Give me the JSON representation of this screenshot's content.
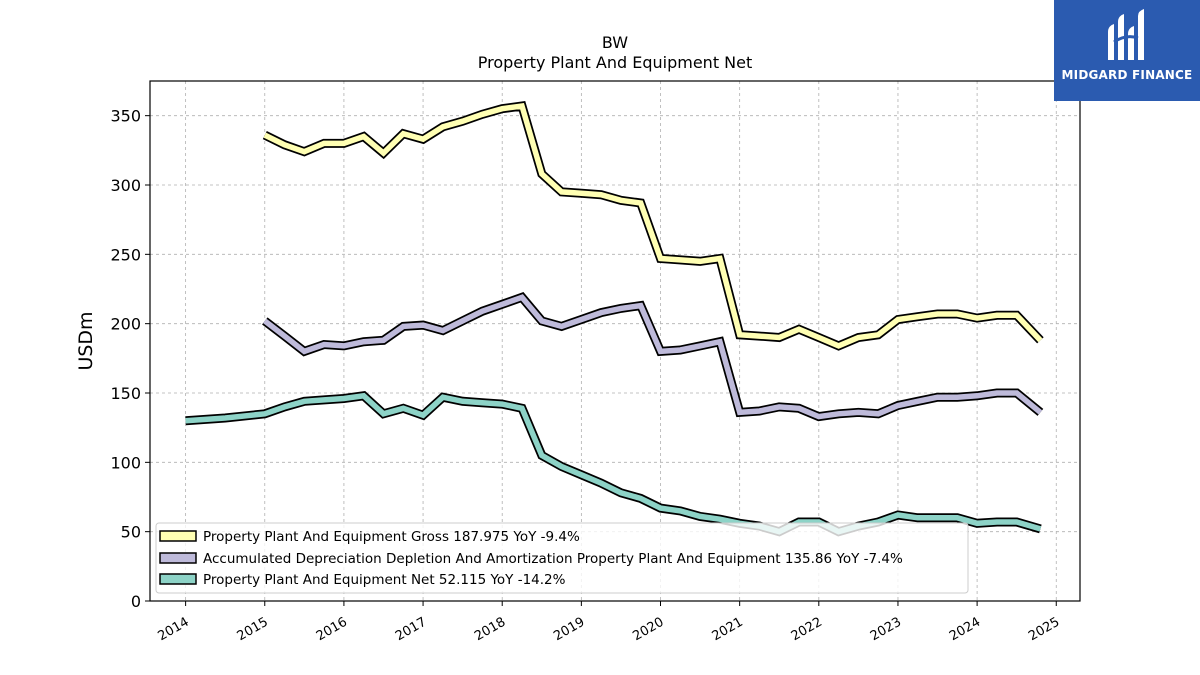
{
  "chart_data": {
    "type": "line",
    "title": "BW",
    "subtitle": "Property Plant And Equipment Net",
    "ylabel": "USDm",
    "xlabel": "",
    "ylim": [
      0,
      375
    ],
    "xlim": [
      2013.55,
      2025.3
    ],
    "yticks": [
      0,
      50,
      100,
      150,
      200,
      250,
      300,
      350
    ],
    "xticks": [
      2014,
      2015,
      2016,
      2017,
      2018,
      2019,
      2020,
      2021,
      2022,
      2023,
      2024,
      2025
    ],
    "grid": true,
    "legend_position": "lower-left",
    "series": [
      {
        "name": "Property Plant And Equipment Gross",
        "legend": "Property Plant And Equipment Gross  187.975 YoY -9.4%",
        "color": "#ffffb3",
        "points": [
          [
            2015.0,
            336
          ],
          [
            2015.25,
            329
          ],
          [
            2015.5,
            324
          ],
          [
            2015.75,
            330
          ],
          [
            2016.0,
            330
          ],
          [
            2016.25,
            335
          ],
          [
            2016.5,
            323
          ],
          [
            2016.75,
            337
          ],
          [
            2017.0,
            333
          ],
          [
            2017.25,
            342
          ],
          [
            2017.5,
            346
          ],
          [
            2017.75,
            351
          ],
          [
            2018.0,
            355
          ],
          [
            2018.25,
            357
          ],
          [
            2018.5,
            308
          ],
          [
            2018.75,
            295
          ],
          [
            2019.0,
            294
          ],
          [
            2019.25,
            293
          ],
          [
            2019.5,
            289
          ],
          [
            2019.75,
            287
          ],
          [
            2020.0,
            247
          ],
          [
            2020.25,
            246
          ],
          [
            2020.5,
            245
          ],
          [
            2020.75,
            247
          ],
          [
            2021.0,
            192
          ],
          [
            2021.25,
            191
          ],
          [
            2021.5,
            190
          ],
          [
            2021.75,
            196
          ],
          [
            2022.0,
            190
          ],
          [
            2022.25,
            184
          ],
          [
            2022.5,
            190
          ],
          [
            2022.75,
            192
          ],
          [
            2023.0,
            203
          ],
          [
            2023.25,
            205
          ],
          [
            2023.5,
            207
          ],
          [
            2023.75,
            207
          ],
          [
            2024.0,
            204
          ],
          [
            2024.25,
            206
          ],
          [
            2024.5,
            206
          ],
          [
            2024.8,
            188
          ]
        ]
      },
      {
        "name": "Accumulated Depreciation Depletion And Amortization Property Plant And Equipment",
        "legend": "Accumulated Depreciation Depletion And Amortization Property Plant And Equipment  135.86 YoY -7.4%",
        "color": "#bebada",
        "points": [
          [
            2015.0,
            202
          ],
          [
            2015.25,
            191
          ],
          [
            2015.5,
            180
          ],
          [
            2015.75,
            185
          ],
          [
            2016.0,
            184
          ],
          [
            2016.25,
            187
          ],
          [
            2016.5,
            188
          ],
          [
            2016.75,
            198
          ],
          [
            2017.0,
            199
          ],
          [
            2017.25,
            195
          ],
          [
            2017.5,
            202
          ],
          [
            2017.75,
            209
          ],
          [
            2018.0,
            214
          ],
          [
            2018.25,
            219
          ],
          [
            2018.5,
            202
          ],
          [
            2018.75,
            198
          ],
          [
            2019.0,
            203
          ],
          [
            2019.25,
            208
          ],
          [
            2019.5,
            211
          ],
          [
            2019.75,
            213
          ],
          [
            2020.0,
            180
          ],
          [
            2020.25,
            181
          ],
          [
            2020.5,
            184
          ],
          [
            2020.75,
            187
          ],
          [
            2021.0,
            136
          ],
          [
            2021.25,
            137
          ],
          [
            2021.5,
            140
          ],
          [
            2021.75,
            139
          ],
          [
            2022.0,
            133
          ],
          [
            2022.25,
            135
          ],
          [
            2022.5,
            136
          ],
          [
            2022.75,
            135
          ],
          [
            2023.0,
            141
          ],
          [
            2023.25,
            144
          ],
          [
            2023.5,
            147
          ],
          [
            2023.75,
            147
          ],
          [
            2024.0,
            148
          ],
          [
            2024.25,
            150
          ],
          [
            2024.5,
            150
          ],
          [
            2024.8,
            136
          ]
        ]
      },
      {
        "name": "Property Plant And Equipment Net",
        "legend": "Property Plant And Equipment Net  52.115 YoY -14.2%",
        "color": "#8dd3c7",
        "points": [
          [
            2014.0,
            130
          ],
          [
            2014.5,
            132
          ],
          [
            2015.0,
            135
          ],
          [
            2015.25,
            140
          ],
          [
            2015.5,
            144
          ],
          [
            2015.75,
            145
          ],
          [
            2016.0,
            146
          ],
          [
            2016.25,
            148
          ],
          [
            2016.5,
            135
          ],
          [
            2016.75,
            139
          ],
          [
            2017.0,
            134
          ],
          [
            2017.25,
            147
          ],
          [
            2017.5,
            144
          ],
          [
            2017.75,
            143
          ],
          [
            2018.0,
            142
          ],
          [
            2018.25,
            139
          ],
          [
            2018.5,
            105
          ],
          [
            2018.75,
            97
          ],
          [
            2019.0,
            91
          ],
          [
            2019.25,
            85
          ],
          [
            2019.5,
            78
          ],
          [
            2019.75,
            74
          ],
          [
            2020.0,
            67
          ],
          [
            2020.25,
            65
          ],
          [
            2020.5,
            61
          ],
          [
            2020.75,
            59
          ],
          [
            2021.0,
            56
          ],
          [
            2021.25,
            54
          ],
          [
            2021.5,
            50
          ],
          [
            2021.75,
            57
          ],
          [
            2022.0,
            57
          ],
          [
            2022.25,
            50
          ],
          [
            2022.5,
            54
          ],
          [
            2022.75,
            57
          ],
          [
            2023.0,
            62
          ],
          [
            2023.25,
            60
          ],
          [
            2023.5,
            60
          ],
          [
            2023.75,
            60
          ],
          [
            2024.0,
            56
          ],
          [
            2024.25,
            57
          ],
          [
            2024.5,
            57
          ],
          [
            2024.8,
            52
          ]
        ]
      }
    ]
  },
  "logo": {
    "text": "MIDGARD FINANCE",
    "bg_color": "#2b5bb0"
  }
}
